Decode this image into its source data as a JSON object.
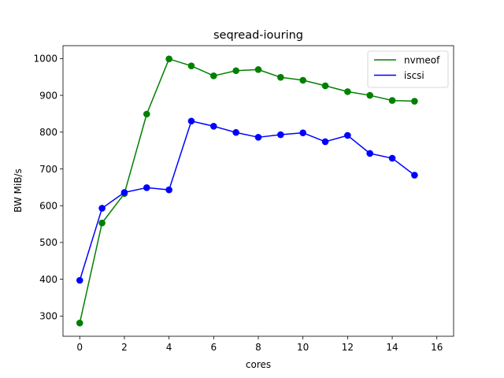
{
  "chart_data": {
    "type": "line",
    "title": "seqread-iouring",
    "xlabel": "cores",
    "ylabel": "BW MiB/s",
    "xlim": [
      -0.75,
      16.75
    ],
    "ylim": [
      245,
      1035
    ],
    "xticks": [
      0,
      2,
      4,
      6,
      8,
      10,
      12,
      14,
      16
    ],
    "yticks": [
      300,
      400,
      500,
      600,
      700,
      800,
      900,
      1000
    ],
    "grid": false,
    "legend_position": "top-right",
    "series": [
      {
        "name": "nvmeof",
        "color": "#008000",
        "marker": "circle",
        "x": [
          0,
          1,
          2,
          3,
          4,
          5,
          6,
          7,
          8,
          9,
          10,
          11,
          12,
          13,
          14,
          15
        ],
        "y": [
          281,
          553,
          633,
          849,
          999,
          980,
          953,
          967,
          970,
          949,
          941,
          926,
          910,
          900,
          886,
          884
        ]
      },
      {
        "name": "iscsi",
        "color": "#0000ff",
        "marker": "circle",
        "x": [
          0,
          1,
          2,
          3,
          4,
          5,
          6,
          7,
          8,
          9,
          10,
          11,
          12,
          13,
          14,
          15
        ],
        "y": [
          397,
          593,
          636,
          649,
          643,
          830,
          816,
          799,
          786,
          793,
          798,
          774,
          791,
          742,
          729,
          683
        ]
      }
    ]
  }
}
